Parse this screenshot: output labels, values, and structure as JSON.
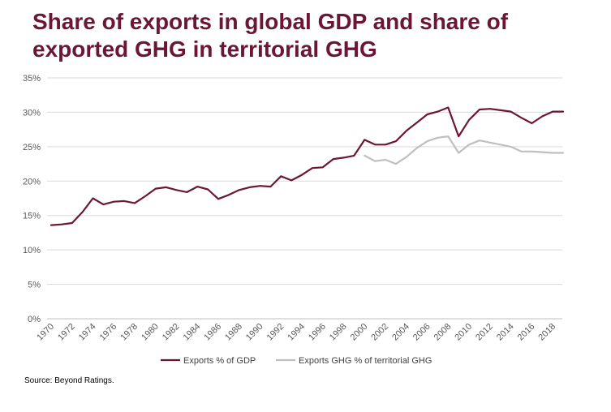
{
  "chart_data": {
    "type": "line",
    "title": "Share of exports in global GDP and share of exported GHG in territorial GHG",
    "source": "Source: Beyond Ratings.",
    "xlabel": "",
    "ylabel": "",
    "ylim": [
      0,
      35
    ],
    "y_ticks": [
      "0%",
      "5%",
      "10%",
      "15%",
      "20%",
      "25%",
      "30%",
      "35%"
    ],
    "y_tick_values": [
      0,
      5,
      10,
      15,
      20,
      25,
      30,
      35
    ],
    "x_ticks": [
      "1970",
      "1972",
      "1974",
      "1976",
      "1978",
      "1980",
      "1982",
      "1984",
      "1986",
      "1988",
      "1990",
      "1992",
      "1994",
      "1996",
      "1998",
      "2000",
      "2002",
      "2004",
      "2006",
      "2008",
      "2010",
      "2012",
      "2014",
      "2016",
      "2018"
    ],
    "x_range": [
      1970,
      2019
    ],
    "grid": "horizontal",
    "legend_position": "bottom",
    "series": [
      {
        "name": "Exports % of GDP",
        "color": "#6b1637",
        "x": [
          1970,
          1971,
          1972,
          1973,
          1974,
          1975,
          1976,
          1977,
          1978,
          1979,
          1980,
          1981,
          1982,
          1983,
          1984,
          1985,
          1986,
          1987,
          1988,
          1989,
          1990,
          1991,
          1992,
          1993,
          1994,
          1995,
          1996,
          1997,
          1998,
          1999,
          2000,
          2001,
          2002,
          2003,
          2004,
          2005,
          2006,
          2007,
          2008,
          2009,
          2010,
          2011,
          2012,
          2013,
          2014,
          2015,
          2016,
          2017,
          2018,
          2019
        ],
        "values": [
          13.6,
          13.7,
          13.9,
          15.5,
          17.5,
          16.6,
          17.0,
          17.1,
          16.8,
          17.8,
          18.9,
          19.1,
          18.7,
          18.4,
          19.2,
          18.8,
          17.4,
          18.0,
          18.7,
          19.1,
          19.3,
          19.2,
          20.7,
          20.1,
          20.9,
          21.9,
          22.0,
          23.2,
          23.4,
          23.7,
          26.0,
          25.3,
          25.3,
          25.8,
          27.3,
          28.5,
          29.7,
          30.1,
          30.7,
          26.5,
          28.9,
          30.4,
          30.5,
          30.3,
          30.1,
          29.2,
          28.4,
          29.4,
          30.1,
          30.1
        ]
      },
      {
        "name": "Exports GHG % of territorial GHG",
        "color": "#bfbfbf",
        "x": [
          2000,
          2001,
          2002,
          2003,
          2004,
          2005,
          2006,
          2007,
          2008,
          2009,
          2010,
          2011,
          2012,
          2013,
          2014,
          2015,
          2016,
          2017,
          2018,
          2019
        ],
        "values": [
          23.7,
          22.9,
          23.1,
          22.5,
          23.5,
          24.8,
          25.8,
          26.3,
          26.5,
          24.1,
          25.3,
          25.9,
          25.6,
          25.3,
          25.0,
          24.3,
          24.3,
          24.2,
          24.1,
          24.1
        ]
      }
    ]
  }
}
